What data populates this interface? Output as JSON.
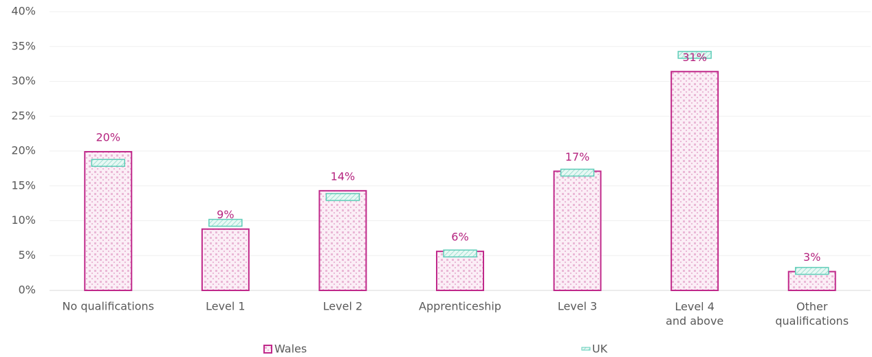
{
  "chart_data": {
    "type": "bar",
    "categories": [
      "No qualifications",
      "Level 1",
      "Level 2",
      "Apprenticeship",
      "Level 3",
      "Level 4 and above",
      "Other qualifications"
    ],
    "series": [
      {
        "name": "Wales",
        "color": "#c0288a",
        "values": [
          19.9,
          8.8,
          14.3,
          5.6,
          17.1,
          31.4,
          2.7
        ],
        "value_labels": [
          "20%",
          "9%",
          "14%",
          "6%",
          "17%",
          "31%",
          "3%"
        ]
      },
      {
        "name": "UK",
        "color": "#5ecdb8",
        "marker": "dash",
        "values": [
          18.3,
          9.7,
          13.4,
          5.3,
          16.9,
          33.8,
          2.8
        ]
      }
    ],
    "ylim": [
      0,
      40
    ],
    "yticks": [
      {
        "value": 0,
        "label": "0%"
      },
      {
        "value": 5,
        "label": "5%"
      },
      {
        "value": 10,
        "label": "10%"
      },
      {
        "value": 15,
        "label": "15%"
      },
      {
        "value": 20,
        "label": "20%"
      },
      {
        "value": 25,
        "label": "25%"
      },
      {
        "value": 30,
        "label": "30%"
      },
      {
        "value": 35,
        "label": "35%"
      },
      {
        "value": 40,
        "label": "40%"
      }
    ],
    "grid": true
  }
}
